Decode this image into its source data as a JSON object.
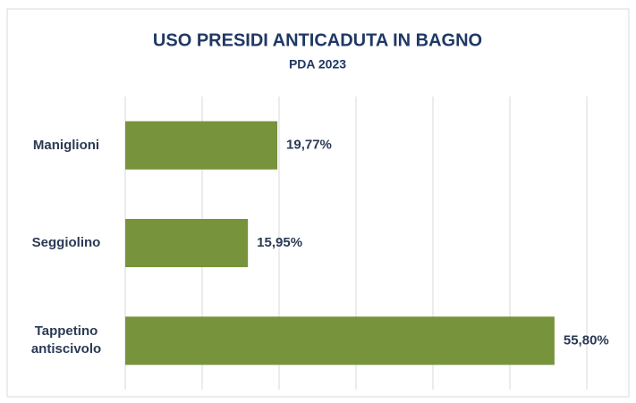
{
  "chart_data": {
    "type": "bar",
    "orientation": "horizontal",
    "title": "USO PRESIDI ANTICADUTA IN BAGNO",
    "subtitle": "PDA 2023",
    "categories": [
      "Maniglioni",
      "Seggiolino",
      "Tappetino antiscivolo"
    ],
    "values": [
      19.77,
      15.95,
      55.8
    ],
    "value_labels": [
      "19,77%",
      "15,95%",
      "55,80%"
    ],
    "color": "#77933c",
    "xlim": [
      0,
      60
    ],
    "xticks": [
      0,
      10,
      20,
      30,
      40,
      50,
      60
    ],
    "grid": true
  }
}
